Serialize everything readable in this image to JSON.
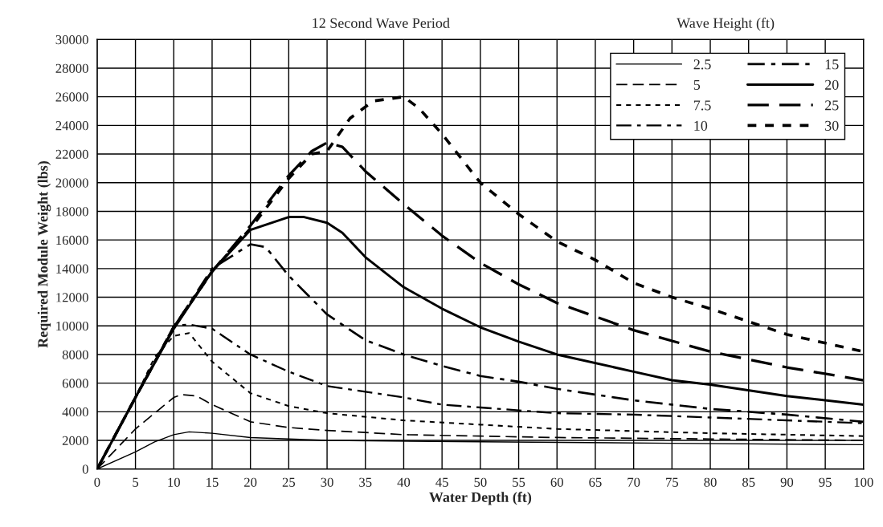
{
  "chart_data": {
    "type": "line",
    "title": "12 Second Wave Period",
    "xlabel": "Water Depth (ft)",
    "ylabel": "Required Module Weight (lbs)",
    "legend_title": "Wave Height (ft)",
    "xlim": [
      0,
      100
    ],
    "ylim": [
      0,
      30000
    ],
    "xticks": [
      0,
      5,
      10,
      15,
      20,
      25,
      30,
      35,
      40,
      45,
      50,
      55,
      60,
      65,
      70,
      75,
      80,
      85,
      90,
      95,
      100
    ],
    "yticks": [
      0,
      2000,
      4000,
      6000,
      8000,
      10000,
      12000,
      14000,
      16000,
      18000,
      20000,
      22000,
      24000,
      26000,
      28000,
      30000
    ],
    "grid": true,
    "legend": "top right",
    "marker": "none",
    "series": [
      {
        "name": "2.5",
        "color": "#000000",
        "line_style": "solid",
        "x": [
          0,
          5,
          7.5,
          10,
          12,
          15,
          20,
          30,
          50,
          75,
          100
        ],
        "values": [
          0,
          1200,
          1900,
          2400,
          2600,
          2500,
          2200,
          2000,
          1900,
          1800,
          1700
        ]
      },
      {
        "name": "5",
        "color": "#000000",
        "line_style": "dashed",
        "x": [
          0,
          5,
          7.5,
          10,
          11,
          13,
          15,
          20,
          25,
          30,
          40,
          50,
          60,
          80,
          100
        ],
        "values": [
          0,
          2800,
          3900,
          5000,
          5200,
          5100,
          4500,
          3300,
          2900,
          2700,
          2400,
          2300,
          2200,
          2100,
          2000
        ]
      },
      {
        "name": "7.5",
        "color": "#000000",
        "line_style": "dotted",
        "x": [
          0,
          5,
          7.5,
          10,
          12,
          15,
          20,
          25,
          30,
          40,
          50,
          60,
          80,
          100
        ],
        "values": [
          0,
          5000,
          7800,
          9300,
          9500,
          7500,
          5300,
          4400,
          3900,
          3400,
          3100,
          2800,
          2500,
          2300
        ]
      },
      {
        "name": "10",
        "color": "#000000",
        "line_style": "dashdot",
        "x": [
          0,
          5,
          10,
          12,
          15,
          20,
          25,
          30,
          40,
          45,
          50,
          60,
          70,
          80,
          100
        ],
        "values": [
          0,
          5000,
          10000,
          10100,
          9800,
          8000,
          6800,
          5800,
          5000,
          4500,
          4300,
          3900,
          3800,
          3600,
          3200
        ]
      },
      {
        "name": "15",
        "color": "#000000",
        "line_style": "dashdot",
        "x": [
          0,
          5,
          10,
          15,
          20,
          22,
          25,
          30,
          35,
          40,
          45,
          50,
          55,
          60,
          70,
          80,
          90,
          100
        ],
        "values": [
          0,
          5000,
          9900,
          14000,
          15700,
          15500,
          13500,
          10800,
          9000,
          8000,
          7200,
          6500,
          6100,
          5600,
          4800,
          4200,
          3800,
          3300
        ]
      },
      {
        "name": "20",
        "color": "#000000",
        "line_style": "solid",
        "x": [
          0,
          5,
          10,
          15,
          20,
          25,
          27,
          30,
          32,
          35,
          40,
          45,
          50,
          55,
          60,
          70,
          75,
          80,
          90,
          100
        ],
        "values": [
          0,
          5000,
          9800,
          13800,
          16700,
          17600,
          17600,
          17200,
          16500,
          14800,
          12700,
          11200,
          9900,
          8900,
          8000,
          6800,
          6200,
          5900,
          5100,
          4500
        ]
      },
      {
        "name": "25",
        "color": "#000000",
        "line_style": "dashed",
        "x": [
          0,
          5,
          10,
          15,
          20,
          25,
          28,
          30,
          32,
          35,
          40,
          45,
          50,
          55,
          60,
          70,
          80,
          90,
          100
        ],
        "values": [
          0,
          5000,
          9900,
          13800,
          17000,
          20500,
          22200,
          22800,
          22500,
          20800,
          18500,
          16300,
          14400,
          12900,
          11600,
          9700,
          8200,
          7100,
          6200
        ]
      },
      {
        "name": "30",
        "color": "#000000",
        "line_style": "dotted",
        "x": [
          0,
          5,
          10,
          15,
          20,
          25,
          28,
          30,
          33,
          36,
          40,
          42,
          45,
          50,
          55,
          60,
          65,
          70,
          75,
          80,
          90,
          100
        ],
        "values": [
          0,
          5000,
          9900,
          13800,
          16800,
          20300,
          22000,
          22200,
          24500,
          25700,
          26000,
          25200,
          23400,
          20000,
          17800,
          15900,
          14600,
          13000,
          12000,
          11200,
          9400,
          8200
        ]
      }
    ]
  }
}
